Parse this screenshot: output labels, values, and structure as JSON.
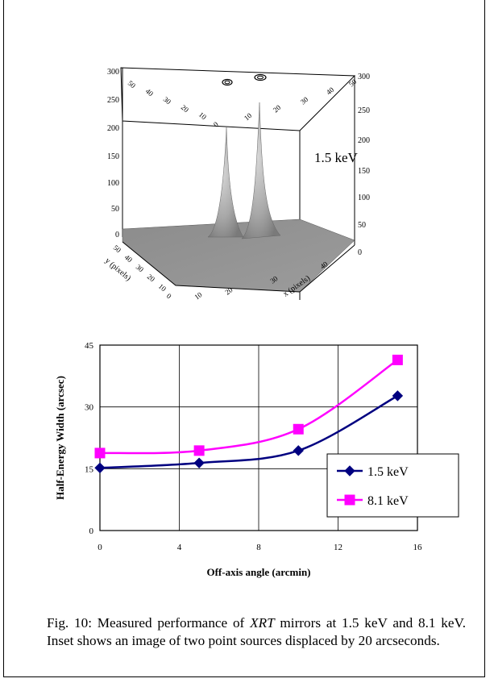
{
  "inset": {
    "energy_label": "1.5 keV",
    "z_ticks_left": [
      "300",
      "250",
      "200",
      "150",
      "100",
      "50",
      "0"
    ],
    "z_ticks_right": [
      "300",
      "250",
      "200",
      "150",
      "100",
      "50",
      "0"
    ],
    "top_ticks_left": [
      "50",
      "40",
      "30",
      "20",
      "10"
    ],
    "top_ticks_front": [
      "0",
      "10",
      "20",
      "30",
      "40",
      "50"
    ],
    "y_axis_label": "y (pixels)",
    "y_ticks": [
      "50",
      "40",
      "30",
      "20",
      "10",
      "0"
    ],
    "x_axis_label": "x (pixels)",
    "x_ticks": [
      "10",
      "20",
      "30",
      "40"
    ]
  },
  "chart_data": {
    "type": "line",
    "xlabel": "Off-axis angle (arcmin)",
    "ylabel": "Half-Energy Width (arcsec)",
    "xlim": [
      0,
      16
    ],
    "ylim": [
      0,
      45
    ],
    "x_ticks": [
      0,
      4,
      8,
      12,
      16
    ],
    "y_ticks": [
      0,
      15,
      30,
      45
    ],
    "grid": true,
    "legend_position": "bottom-right",
    "series": [
      {
        "name": "1.5 keV",
        "color": "#000080",
        "marker": "diamond",
        "x": [
          0,
          5,
          10,
          15
        ],
        "y": [
          15.2,
          16.4,
          19.4,
          32.7
        ]
      },
      {
        "name": "8.1 keV",
        "color": "#ff00ff",
        "marker": "square",
        "x": [
          0,
          5,
          10,
          15
        ],
        "y": [
          18.8,
          19.4,
          24.6,
          41.4
        ]
      }
    ]
  },
  "caption": {
    "prefix": "Fig. 10: Measured performance of ",
    "italic": "XRT",
    "suffix": " mirrors at 1.5 keV and 8.1 keV.  Inset shows an image of two point sources displaced by 20 arcseconds."
  }
}
